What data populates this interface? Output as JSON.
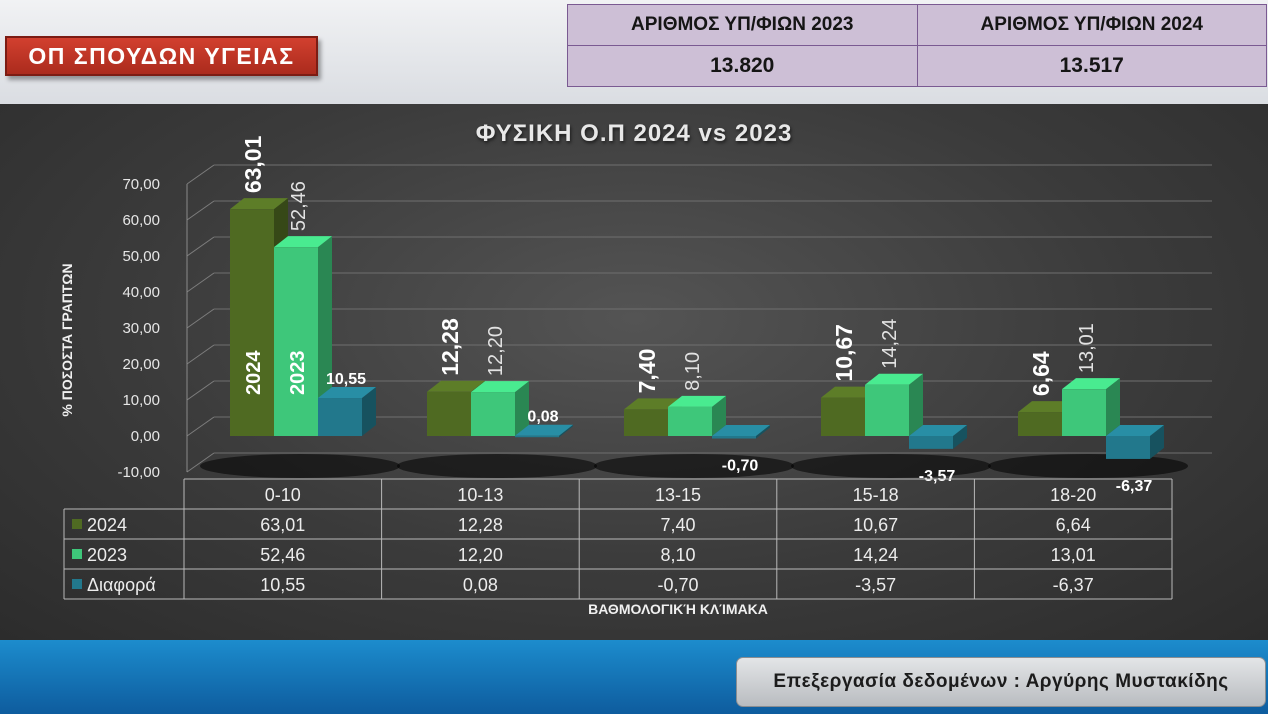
{
  "header": {
    "badge_title": "ΟΠ ΣΠΟΥΔΩΝ ΥΓΕΙΑΣ",
    "candidates_2023_label": "ΑΡΙΘΜΟΣ ΥΠ/ΦΙΩΝ 2023",
    "candidates_2024_label": "ΑΡΙΘΜΟΣ ΥΠ/ΦΙΩΝ 2024",
    "candidates_2023_value": "13.820",
    "candidates_2024_value": "13.517"
  },
  "footer": {
    "credit": "Επεξεργασία δεδομένων : Αργύρης Μυστακίδης"
  },
  "colors": {
    "s2024": "#4f6a22",
    "s2023": "#3ec77a",
    "diff": "#22788c",
    "top_band": "#e3e5e8",
    "bottom_band": "#1476b8",
    "badge": "#bf3526"
  },
  "chart_data": {
    "type": "bar",
    "title": "ΦΥΣΙΚΗ Ο.Π 2024 vs 2023",
    "xlabel": "ΒΑΘΜΟΛΟΓΙΚΉ ΚΛΊΜΑΚΑ",
    "ylabel": "% ΠΟΣΟΣΤΑ ΓΡΑΠΤΩΝ",
    "ylim": [
      -10,
      70
    ],
    "yticks": [
      "70,00",
      "60,00",
      "50,00",
      "40,00",
      "30,00",
      "20,00",
      "10,00",
      "0,00",
      "-10,00"
    ],
    "categories": [
      "0-10",
      "10-13",
      "13-15",
      "15-18",
      "18-20"
    ],
    "series": [
      {
        "name": "2024",
        "values": [
          63.01,
          12.28,
          7.4,
          10.67,
          6.64
        ],
        "labels": [
          "63,01",
          "12,28",
          "7,40",
          "10,67",
          "6,64"
        ]
      },
      {
        "name": "2023",
        "values": [
          52.46,
          12.2,
          8.1,
          14.24,
          13.01
        ],
        "labels": [
          "52,46",
          "12,20",
          "8,10",
          "14,24",
          "13,01"
        ]
      },
      {
        "name": "Διαφορά",
        "values": [
          10.55,
          0.08,
          -0.7,
          -3.57,
          -6.37
        ],
        "labels": [
          "10,55",
          "0,08",
          "-0,70",
          "-3,57",
          "-6,37"
        ]
      }
    ],
    "grid": true,
    "data_table": true,
    "in_bar_labels": [
      "2024",
      "2023"
    ]
  }
}
